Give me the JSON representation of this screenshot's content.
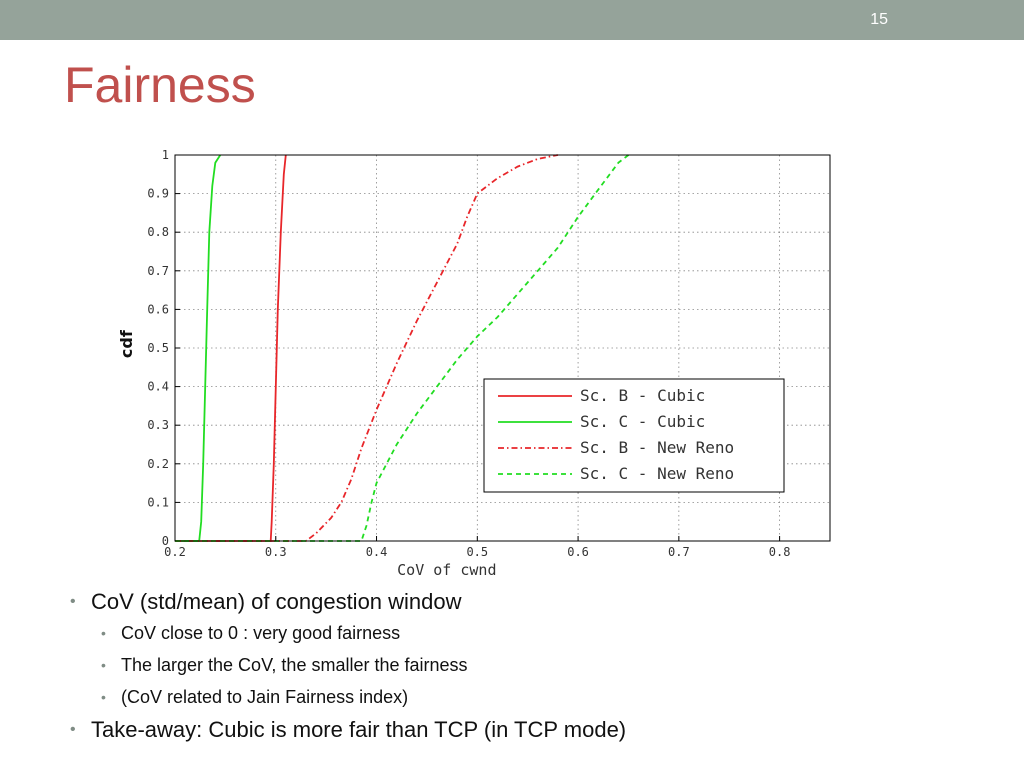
{
  "slide": {
    "number": "15",
    "title": "Fairness",
    "bullets": {
      "b1": "CoV (std/mean) of congestion window",
      "b1_sub": [
        "CoV close to 0 : very good fairness",
        "The larger the CoV, the smaller the fairness",
        "(CoV related to Jain Fairness index)"
      ],
      "b2": "Take-away: Cubic is more fair than TCP (in TCP mode)"
    }
  },
  "chart_data": {
    "type": "line",
    "title": "",
    "xlabel": "CoV of cwnd",
    "ylabel": "cdf",
    "xlim": [
      0.2,
      0.85
    ],
    "ylim": [
      0,
      1
    ],
    "xticks": [
      "0.2",
      "0.3",
      "0.4",
      "0.5",
      "0.6",
      "0.7",
      "0.8"
    ],
    "yticks": [
      "0",
      "0.1",
      "0.2",
      "0.3",
      "0.4",
      "0.5",
      "0.6",
      "0.7",
      "0.8",
      "0.9",
      "1"
    ],
    "grid": true,
    "legend_position": "lower-right",
    "series": [
      {
        "name": "Sc. B - Cubic",
        "color": "#e8262a",
        "style": "solid",
        "x": [
          0.2,
          0.295,
          0.296,
          0.298,
          0.3,
          0.302,
          0.305,
          0.308,
          0.31
        ],
        "y": [
          0,
          0,
          0.05,
          0.2,
          0.4,
          0.6,
          0.8,
          0.95,
          1.0
        ]
      },
      {
        "name": "Sc. C - Cubic",
        "color": "#22dd22",
        "style": "solid",
        "x": [
          0.2,
          0.224,
          0.226,
          0.228,
          0.23,
          0.232,
          0.234,
          0.237,
          0.24,
          0.245
        ],
        "y": [
          0,
          0,
          0.05,
          0.2,
          0.4,
          0.6,
          0.8,
          0.92,
          0.98,
          1.0
        ]
      },
      {
        "name": "Sc. B - New Reno",
        "color": "#e8262a",
        "style": "dashdot",
        "x": [
          0.2,
          0.33,
          0.34,
          0.355,
          0.365,
          0.375,
          0.385,
          0.4,
          0.42,
          0.44,
          0.46,
          0.48,
          0.49,
          0.5,
          0.52,
          0.54,
          0.56,
          0.58
        ],
        "y": [
          0,
          0,
          0.02,
          0.06,
          0.1,
          0.16,
          0.24,
          0.34,
          0.46,
          0.57,
          0.67,
          0.77,
          0.84,
          0.9,
          0.94,
          0.97,
          0.99,
          1.0
        ]
      },
      {
        "name": "Sc. C - New Reno",
        "color": "#22dd22",
        "style": "dashed",
        "x": [
          0.2,
          0.385,
          0.39,
          0.395,
          0.4,
          0.42,
          0.44,
          0.46,
          0.48,
          0.5,
          0.52,
          0.54,
          0.56,
          0.58,
          0.6,
          0.62,
          0.64,
          0.65
        ],
        "y": [
          0,
          0,
          0.04,
          0.1,
          0.15,
          0.25,
          0.33,
          0.4,
          0.47,
          0.53,
          0.58,
          0.64,
          0.7,
          0.76,
          0.84,
          0.91,
          0.98,
          1.0
        ]
      }
    ]
  }
}
